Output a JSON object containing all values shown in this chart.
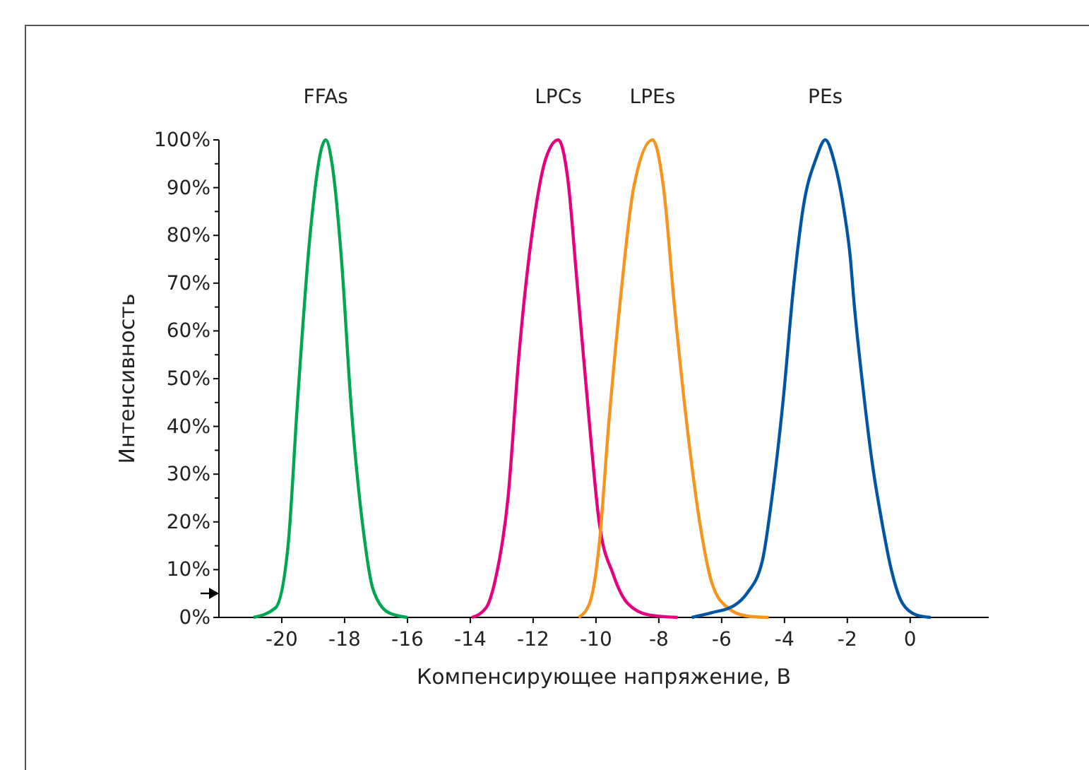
{
  "chart_data": {
    "type": "line",
    "xlabel": "Компенсирующее напряжение, В",
    "ylabel": "Интенсивность",
    "xlim": [
      -22,
      2.5
    ],
    "xticks": [
      -20,
      -18,
      -16,
      -14,
      -12,
      -10,
      -8,
      -6,
      -4,
      -2,
      0
    ],
    "ylim": [
      0,
      100
    ],
    "yticks": [
      {
        "value": 0,
        "label": "0%"
      },
      {
        "value": 5,
        "label": null
      },
      {
        "value": 10,
        "label": "10%"
      },
      {
        "value": 15,
        "label": null
      },
      {
        "value": 20,
        "label": "20%"
      },
      {
        "value": 25,
        "label": null
      },
      {
        "value": 30,
        "label": "30%"
      },
      {
        "value": 35,
        "label": null
      },
      {
        "value": 40,
        "label": "40%"
      },
      {
        "value": 45,
        "label": null
      },
      {
        "value": 50,
        "label": "50%"
      },
      {
        "value": 55,
        "label": null
      },
      {
        "value": 60,
        "label": "60%"
      },
      {
        "value": 65,
        "label": null
      },
      {
        "value": 70,
        "label": "70%"
      },
      {
        "value": 75,
        "label": null
      },
      {
        "value": 80,
        "label": "80%"
      },
      {
        "value": 85,
        "label": null
      },
      {
        "value": 90,
        "label": "90%"
      },
      {
        "value": 95,
        "label": null
      },
      {
        "value": 100,
        "label": "100%"
      }
    ],
    "grid": false,
    "legend": false,
    "marker": "none",
    "line_style": "solid",
    "series": [
      {
        "name": "FFAs",
        "color": "#00a651",
        "x": [
          -20.9,
          -20.2,
          -19.8,
          -19.5,
          -19.1,
          -18.7,
          -18.6,
          -18.4,
          -18.1,
          -17.8,
          -17.4,
          -17.1,
          -16.6,
          -16
        ],
        "values": [
          0,
          2,
          15,
          45,
          80,
          99,
          100,
          95,
          75,
          45,
          18,
          6,
          1,
          0
        ]
      },
      {
        "name": "LPCs",
        "color": "#e6007e",
        "x": [
          -13.95,
          -13.5,
          -13.2,
          -12.8,
          -12.45,
          -12,
          -11.6,
          -11.2,
          -10.9,
          -10.6,
          -10.2,
          -9.9,
          -9.45,
          -9,
          -8.3,
          -7.4
        ],
        "values": [
          0,
          2,
          8,
          25,
          55,
          82,
          96,
          100,
          92,
          70,
          40,
          20,
          9,
          3,
          0.5,
          0
        ]
      },
      {
        "name": "LPEs",
        "color": "#f7941d",
        "x": [
          -10.55,
          -10.2,
          -9.9,
          -9.6,
          -9.2,
          -8.8,
          -8.2,
          -7.85,
          -7.5,
          -7.1,
          -6.7,
          -6.3,
          -5.8,
          -5.2,
          -4.5
        ],
        "values": [
          0,
          3,
          15,
          40,
          68,
          90,
          100,
          90,
          65,
          40,
          20,
          7,
          2,
          0.3,
          0
        ]
      },
      {
        "name": "PEs",
        "color": "#0055a4",
        "x": [
          -6.95,
          -6.3,
          -5.6,
          -5.2,
          -4.7,
          -4.4,
          -4.05,
          -3.7,
          -3.4,
          -3,
          -2.7,
          -2.4,
          -2.1,
          -1.9,
          -1.8,
          -1.5,
          -1.2,
          -0.9,
          -0.6,
          -0.25,
          0.2,
          0.65
        ],
        "values": [
          0,
          1,
          2.5,
          5,
          12,
          25,
          45,
          70,
          86,
          96,
          100,
          95,
          85,
          75,
          67,
          48,
          32,
          20,
          10,
          3,
          0.5,
          0
        ]
      }
    ]
  }
}
